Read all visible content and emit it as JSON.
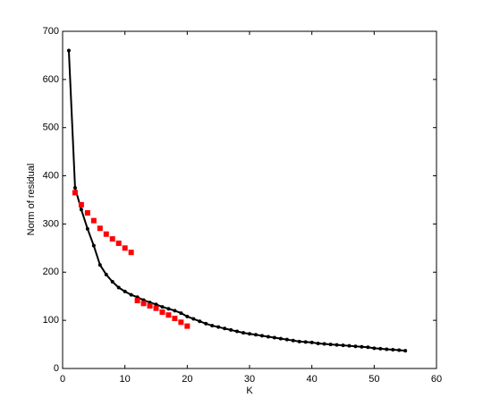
{
  "chart_data": {
    "type": "line",
    "xlabel": "K",
    "ylabel": "Norm of residual",
    "xlim": [
      0,
      60
    ],
    "xticks": [
      0,
      10,
      20,
      30,
      40,
      50,
      60
    ],
    "ylim": [
      0,
      700
    ],
    "yticks": [
      0,
      100,
      200,
      300,
      400,
      500,
      600,
      700
    ],
    "series": [
      {
        "color": "#000000",
        "marker": "dot",
        "x": [
          1,
          2,
          3,
          4,
          5,
          6,
          7,
          8,
          9,
          10,
          11,
          12,
          13,
          14,
          15,
          16,
          17,
          18,
          19,
          20,
          21,
          22,
          23,
          24,
          25,
          26,
          27,
          28,
          29,
          30,
          31,
          32,
          33,
          34,
          35,
          36,
          37,
          38,
          39,
          40,
          41,
          42,
          43,
          44,
          45,
          46,
          47,
          48,
          49,
          50,
          51,
          52,
          53,
          54,
          55
        ],
        "values": [
          660,
          375,
          330,
          290,
          255,
          215,
          195,
          180,
          168,
          160,
          153,
          148,
          142,
          137,
          133,
          128,
          124,
          120,
          115,
          108,
          103,
          98,
          93,
          89,
          86,
          83,
          80,
          77,
          74,
          72,
          70,
          68,
          66,
          64,
          62,
          60,
          58,
          56,
          55,
          54,
          52,
          51,
          50,
          49,
          48,
          47,
          46,
          45,
          44,
          42,
          41,
          40,
          39,
          38,
          37
        ]
      },
      {
        "color": "#ff0000",
        "marker": "square",
        "x": [
          2,
          3,
          4,
          5,
          6,
          7,
          8,
          9,
          10,
          11,
          12,
          13,
          14,
          15,
          16,
          17,
          18,
          19,
          20
        ],
        "values": [
          365,
          340,
          323,
          307,
          291,
          279,
          269,
          260,
          250,
          241,
          141,
          135,
          130,
          125,
          117,
          111,
          104,
          96,
          88
        ]
      }
    ]
  }
}
